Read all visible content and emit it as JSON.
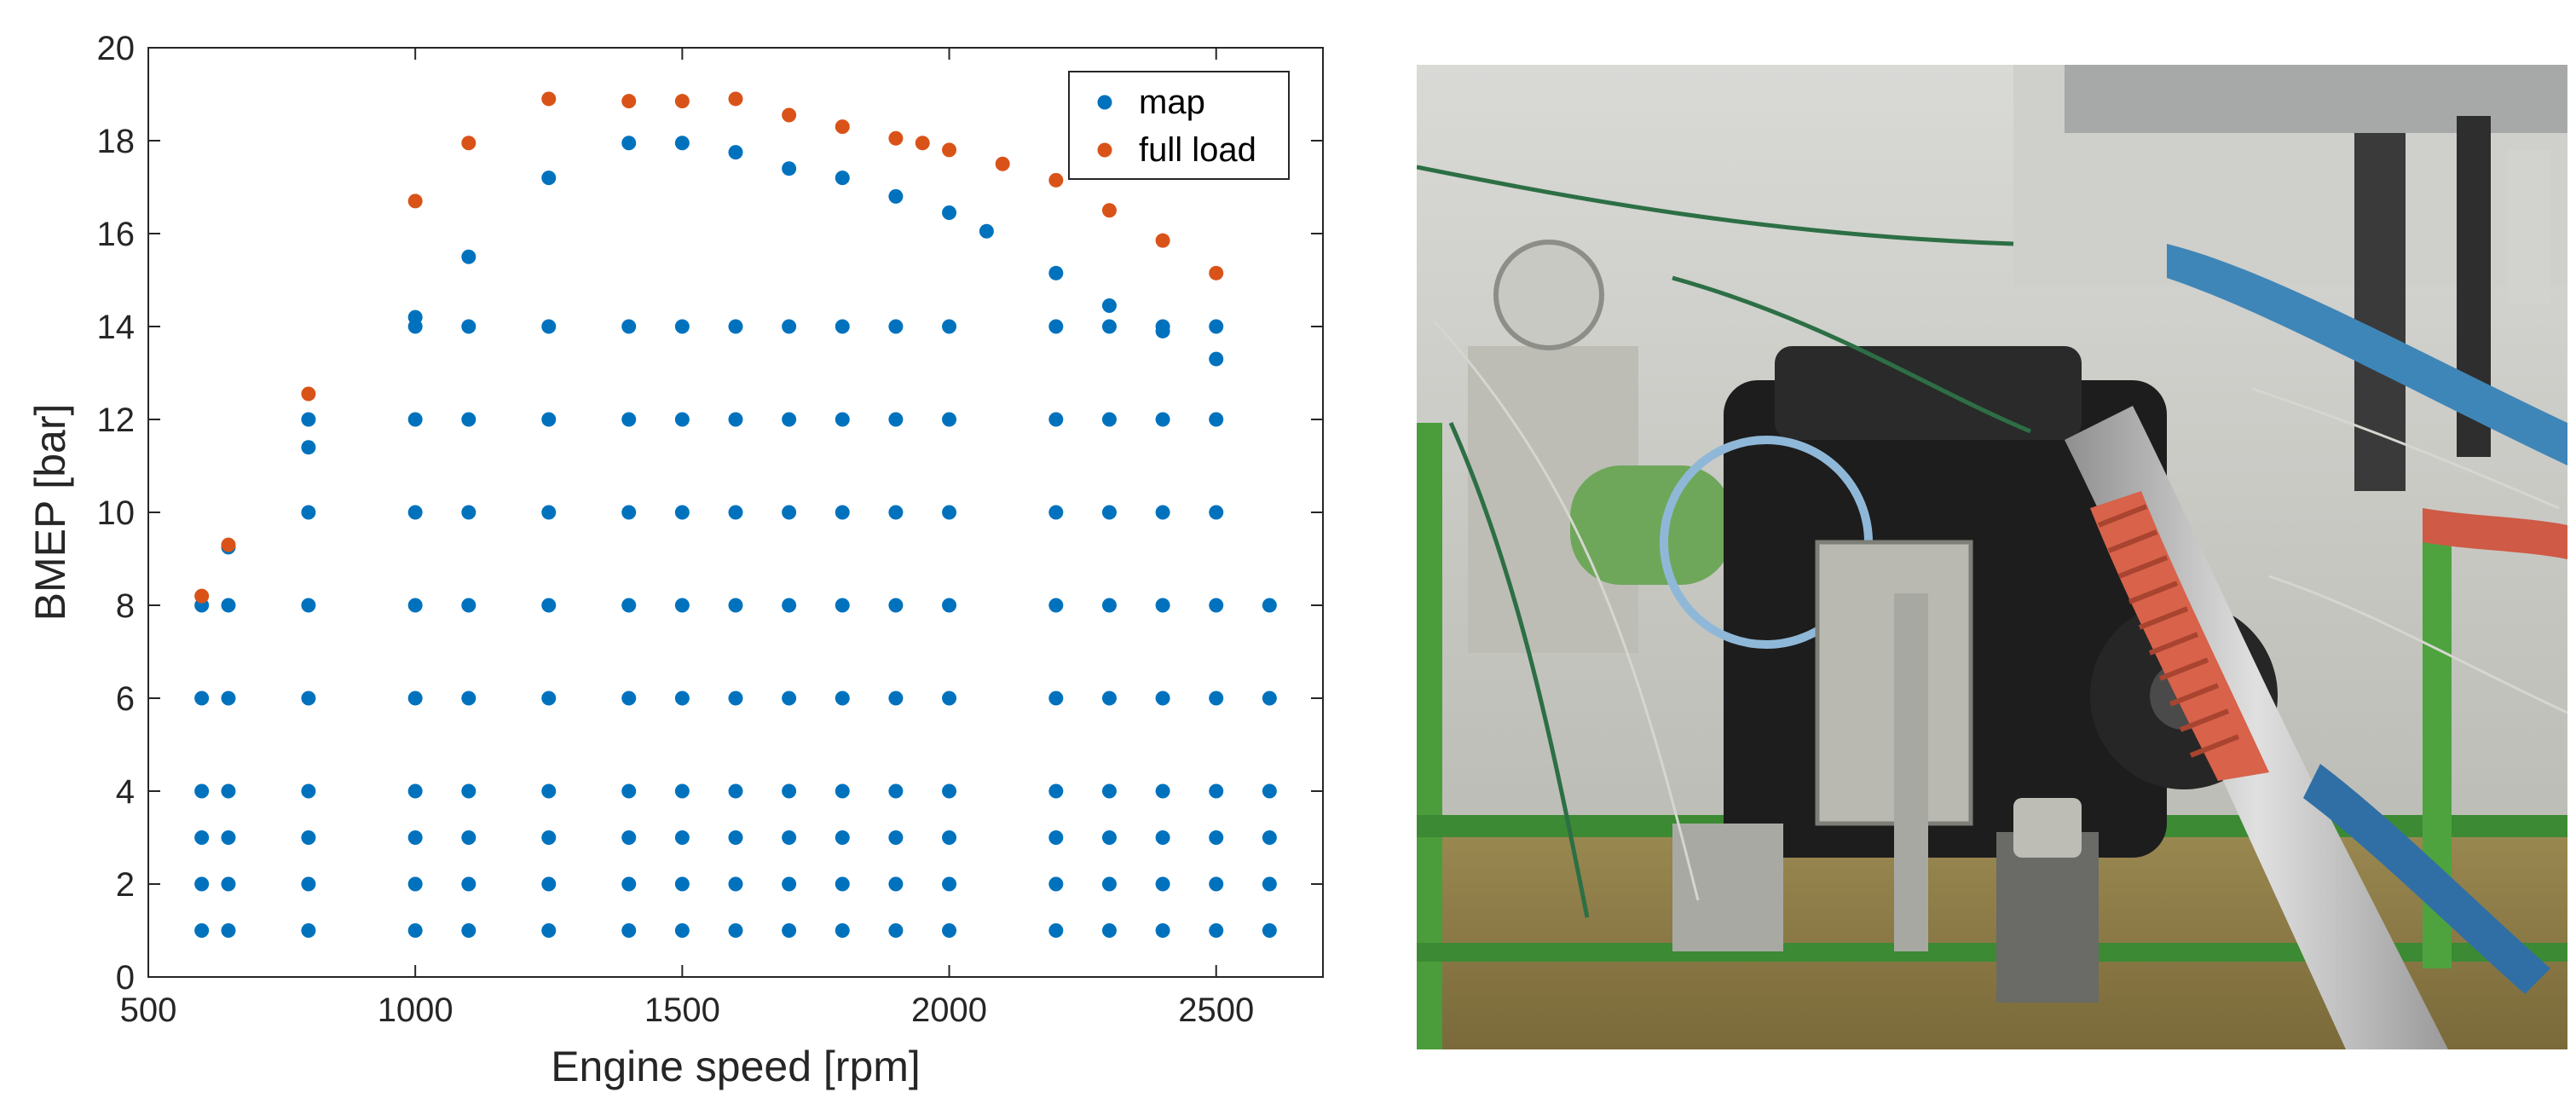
{
  "chart_data": {
    "type": "scatter",
    "title": "",
    "xlabel": "Engine speed [rpm]",
    "ylabel": "BMEP [bar]",
    "xlim": [
      500,
      2700
    ],
    "ylim": [
      0,
      20
    ],
    "xticks": [
      500,
      1000,
      1500,
      2000,
      2500
    ],
    "yticks": [
      0,
      2,
      4,
      6,
      8,
      10,
      12,
      14,
      16,
      18,
      20
    ],
    "grid": false,
    "legend_position": "top-right",
    "series": [
      {
        "name": "map",
        "color": "#0072BD",
        "points": [
          [
            600,
            1
          ],
          [
            600,
            2
          ],
          [
            600,
            3
          ],
          [
            600,
            4
          ],
          [
            600,
            6
          ],
          [
            600,
            8
          ],
          [
            650,
            1
          ],
          [
            650,
            2
          ],
          [
            650,
            3
          ],
          [
            650,
            4
          ],
          [
            650,
            6
          ],
          [
            650,
            8
          ],
          [
            650,
            9.25
          ],
          [
            800,
            1
          ],
          [
            800,
            2
          ],
          [
            800,
            3
          ],
          [
            800,
            4
          ],
          [
            800,
            6
          ],
          [
            800,
            8
          ],
          [
            800,
            10
          ],
          [
            800,
            11.4
          ],
          [
            800,
            12
          ],
          [
            1000,
            1
          ],
          [
            1000,
            2
          ],
          [
            1000,
            3
          ],
          [
            1000,
            4
          ],
          [
            1000,
            6
          ],
          [
            1000,
            8
          ],
          [
            1000,
            10
          ],
          [
            1000,
            12
          ],
          [
            1000,
            14
          ],
          [
            1000,
            14.2
          ],
          [
            1100,
            1
          ],
          [
            1100,
            2
          ],
          [
            1100,
            3
          ],
          [
            1100,
            4
          ],
          [
            1100,
            6
          ],
          [
            1100,
            8
          ],
          [
            1100,
            10
          ],
          [
            1100,
            12
          ],
          [
            1100,
            14
          ],
          [
            1100,
            15.5
          ],
          [
            1250,
            1
          ],
          [
            1250,
            2
          ],
          [
            1250,
            3
          ],
          [
            1250,
            4
          ],
          [
            1250,
            6
          ],
          [
            1250,
            8
          ],
          [
            1250,
            10
          ],
          [
            1250,
            12
          ],
          [
            1250,
            14
          ],
          [
            1250,
            17.2
          ],
          [
            1400,
            1
          ],
          [
            1400,
            2
          ],
          [
            1400,
            3
          ],
          [
            1400,
            4
          ],
          [
            1400,
            6
          ],
          [
            1400,
            8
          ],
          [
            1400,
            10
          ],
          [
            1400,
            12
          ],
          [
            1400,
            14
          ],
          [
            1400,
            17.95
          ],
          [
            1500,
            1
          ],
          [
            1500,
            2
          ],
          [
            1500,
            3
          ],
          [
            1500,
            4
          ],
          [
            1500,
            6
          ],
          [
            1500,
            8
          ],
          [
            1500,
            10
          ],
          [
            1500,
            12
          ],
          [
            1500,
            14
          ],
          [
            1500,
            17.95
          ],
          [
            1600,
            1
          ],
          [
            1600,
            2
          ],
          [
            1600,
            3
          ],
          [
            1600,
            4
          ],
          [
            1600,
            6
          ],
          [
            1600,
            8
          ],
          [
            1600,
            10
          ],
          [
            1600,
            12
          ],
          [
            1600,
            14
          ],
          [
            1600,
            17.75
          ],
          [
            1700,
            1
          ],
          [
            1700,
            2
          ],
          [
            1700,
            3
          ],
          [
            1700,
            4
          ],
          [
            1700,
            6
          ],
          [
            1700,
            8
          ],
          [
            1700,
            10
          ],
          [
            1700,
            12
          ],
          [
            1700,
            14
          ],
          [
            1700,
            17.4
          ],
          [
            1800,
            1
          ],
          [
            1800,
            2
          ],
          [
            1800,
            3
          ],
          [
            1800,
            4
          ],
          [
            1800,
            6
          ],
          [
            1800,
            8
          ],
          [
            1800,
            10
          ],
          [
            1800,
            12
          ],
          [
            1800,
            14
          ],
          [
            1800,
            17.2
          ],
          [
            1900,
            1
          ],
          [
            1900,
            2
          ],
          [
            1900,
            3
          ],
          [
            1900,
            4
          ],
          [
            1900,
            6
          ],
          [
            1900,
            8
          ],
          [
            1900,
            10
          ],
          [
            1900,
            12
          ],
          [
            1900,
            14
          ],
          [
            1900,
            16.8
          ],
          [
            2000,
            1
          ],
          [
            2000,
            2
          ],
          [
            2000,
            3
          ],
          [
            2000,
            4
          ],
          [
            2000,
            6
          ],
          [
            2000,
            8
          ],
          [
            2000,
            10
          ],
          [
            2000,
            12
          ],
          [
            2000,
            14
          ],
          [
            2000,
            16.45
          ],
          [
            2070,
            16.05
          ],
          [
            2200,
            1
          ],
          [
            2200,
            2
          ],
          [
            2200,
            3
          ],
          [
            2200,
            4
          ],
          [
            2200,
            6
          ],
          [
            2200,
            8
          ],
          [
            2200,
            10
          ],
          [
            2200,
            12
          ],
          [
            2200,
            14
          ],
          [
            2200,
            15.15
          ],
          [
            2300,
            1
          ],
          [
            2300,
            2
          ],
          [
            2300,
            3
          ],
          [
            2300,
            4
          ],
          [
            2300,
            6
          ],
          [
            2300,
            8
          ],
          [
            2300,
            10
          ],
          [
            2300,
            12
          ],
          [
            2300,
            14
          ],
          [
            2300,
            14.45
          ],
          [
            2400,
            1
          ],
          [
            2400,
            2
          ],
          [
            2400,
            3
          ],
          [
            2400,
            4
          ],
          [
            2400,
            6
          ],
          [
            2400,
            8
          ],
          [
            2400,
            10
          ],
          [
            2400,
            12
          ],
          [
            2400,
            13.9
          ],
          [
            2400,
            14
          ],
          [
            2500,
            1
          ],
          [
            2500,
            2
          ],
          [
            2500,
            3
          ],
          [
            2500,
            4
          ],
          [
            2500,
            6
          ],
          [
            2500,
            8
          ],
          [
            2500,
            10
          ],
          [
            2500,
            12
          ],
          [
            2500,
            13.3
          ],
          [
            2500,
            14
          ],
          [
            2600,
            1
          ],
          [
            2600,
            2
          ],
          [
            2600,
            3
          ],
          [
            2600,
            4
          ],
          [
            2600,
            6
          ],
          [
            2600,
            8
          ]
        ]
      },
      {
        "name": "full load",
        "color": "#D95319",
        "points": [
          [
            600,
            8.2
          ],
          [
            650,
            9.3
          ],
          [
            800,
            12.55
          ],
          [
            1000,
            16.7
          ],
          [
            1100,
            17.95
          ],
          [
            1250,
            18.9
          ],
          [
            1400,
            18.85
          ],
          [
            1500,
            18.85
          ],
          [
            1600,
            18.9
          ],
          [
            1700,
            18.55
          ],
          [
            1800,
            18.3
          ],
          [
            1900,
            18.05
          ],
          [
            1950,
            17.95
          ],
          [
            2000,
            17.8
          ],
          [
            2100,
            17.5
          ],
          [
            2200,
            17.15
          ],
          [
            2300,
            16.5
          ],
          [
            2400,
            15.85
          ],
          [
            2500,
            15.15
          ]
        ]
      }
    ]
  },
  "photo": {
    "subject": "engine-test-bench-photo"
  }
}
